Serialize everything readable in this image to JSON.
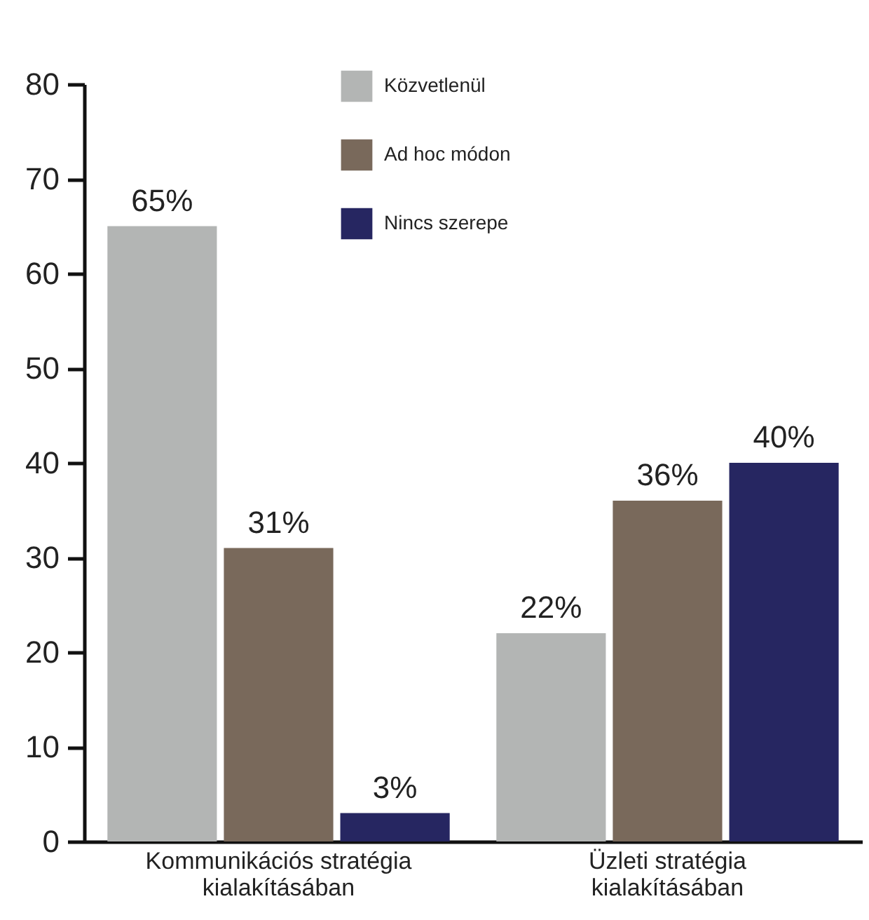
{
  "chart_data": {
    "type": "bar",
    "categories": [
      "Kommunikációs stratégia kialakításában",
      "Üzleti stratégia kialakításában"
    ],
    "series": [
      {
        "name": "Közvetlenül",
        "color": "#b3b5b4",
        "values": [
          65,
          22
        ],
        "value_labels": [
          "65%",
          "22%"
        ]
      },
      {
        "name": "Ad hoc módon",
        "color": "#79695b",
        "values": [
          31,
          36
        ],
        "value_labels": [
          "31%",
          "36%"
        ]
      },
      {
        "name": "Nincs szerepe",
        "color": "#262661",
        "values": [
          3,
          40
        ],
        "value_labels": [
          "3%",
          "40%"
        ]
      }
    ],
    "ylim": [
      0,
      80
    ],
    "yticks": [
      0,
      10,
      20,
      30,
      40,
      50,
      60,
      70,
      80
    ],
    "grid": false,
    "legend": "top"
  }
}
